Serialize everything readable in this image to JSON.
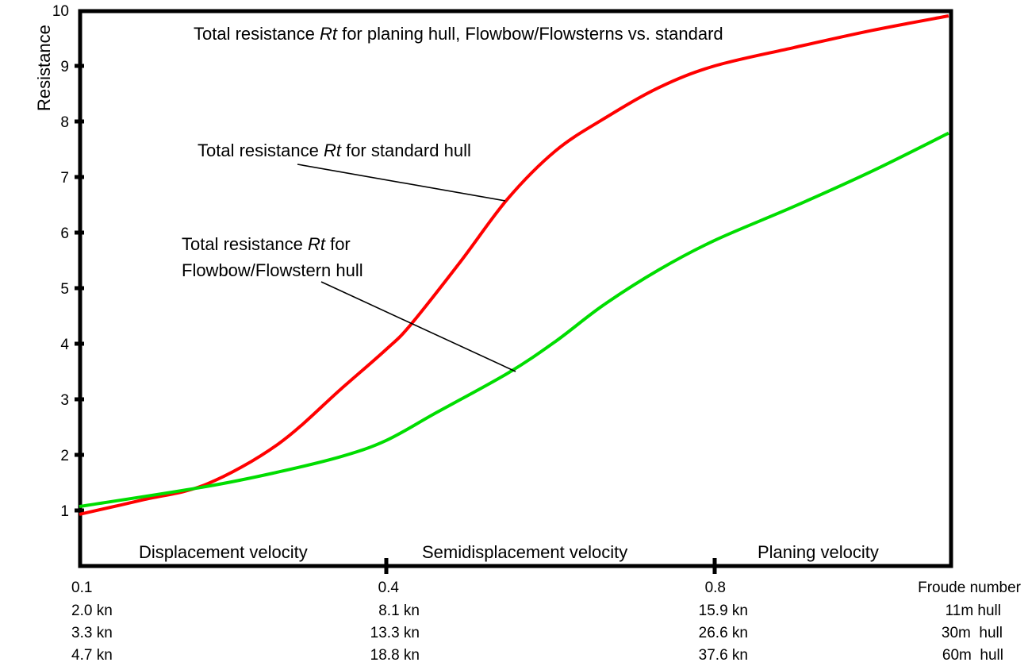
{
  "chart_data": {
    "type": "line",
    "title_parts": [
      "Total resistance ",
      "Rt",
      " for planing hull, Flowbow/Flowsterns vs. standard"
    ],
    "ylabel": "Resistance",
    "xlabel": "Froude number",
    "ylim": [
      0,
      10
    ],
    "xlim": [
      0.1,
      1.09
    ],
    "x_scale": "piecewise (non-linear), ticks at 0.1, 0.4, 0.8",
    "y_ticks": [
      "1",
      "2",
      "3",
      "4",
      "5",
      "6",
      "7",
      "8",
      "9",
      "10"
    ],
    "x_ticks": [
      {
        "froude": "0.1",
        "kn_11m": "2.0 kn",
        "kn_30m": "3.3 kn",
        "kn_60m": "4.7 kn"
      },
      {
        "froude": "0.4",
        "kn_11m": "8.1 kn",
        "kn_30m": "13.3 kn",
        "kn_60m": "18.8 kn"
      },
      {
        "froude": "0.8",
        "kn_11m": "15.9 kn",
        "kn_30m": "26.6 kn",
        "kn_60m": "37.6 kn"
      }
    ],
    "row_labels": {
      "froude": "Froude number",
      "hull_11m": "11m hull",
      "hull_30m": "30m  hull",
      "hull_60m": "60m  hull"
    },
    "regions": [
      "Displacement velocity",
      "Semidisplacement velocity",
      "Planing velocity"
    ],
    "annotations": {
      "standard": [
        "Total resistance ",
        "Rt",
        " for standard hull"
      ],
      "flowbow_line1": [
        "Total resistance ",
        "Rt",
        " for"
      ],
      "flowbow_line2": "Flowbow/Flowstern hull"
    },
    "series": [
      {
        "name": "Total resistance Rt for standard hull",
        "color": "#ff0000",
        "x": [
          0.1,
          0.162,
          0.224,
          0.294,
          0.356,
          0.4,
          0.429,
          0.49,
          0.548,
          0.606,
          0.664,
          0.732,
          0.8,
          0.897,
          0.993,
          1.086
        ],
        "y": [
          0.93,
          1.19,
          1.47,
          2.19,
          3.19,
          3.9,
          4.33,
          5.47,
          6.61,
          7.47,
          8.04,
          8.61,
          9.0,
          9.33,
          9.64,
          9.9
        ]
      },
      {
        "name": "Total resistance Rt for Flowbow/Flowstern hull",
        "color": "#00dd00",
        "x": [
          0.1,
          0.224,
          0.294,
          0.356,
          0.4,
          0.461,
          0.548,
          0.606,
          0.664,
          0.732,
          0.8,
          0.897,
          0.993,
          1.086
        ],
        "y": [
          1.07,
          1.43,
          1.69,
          1.97,
          2.26,
          2.76,
          3.47,
          4.04,
          4.69,
          5.33,
          5.86,
          6.47,
          7.11,
          7.79
        ]
      }
    ]
  }
}
